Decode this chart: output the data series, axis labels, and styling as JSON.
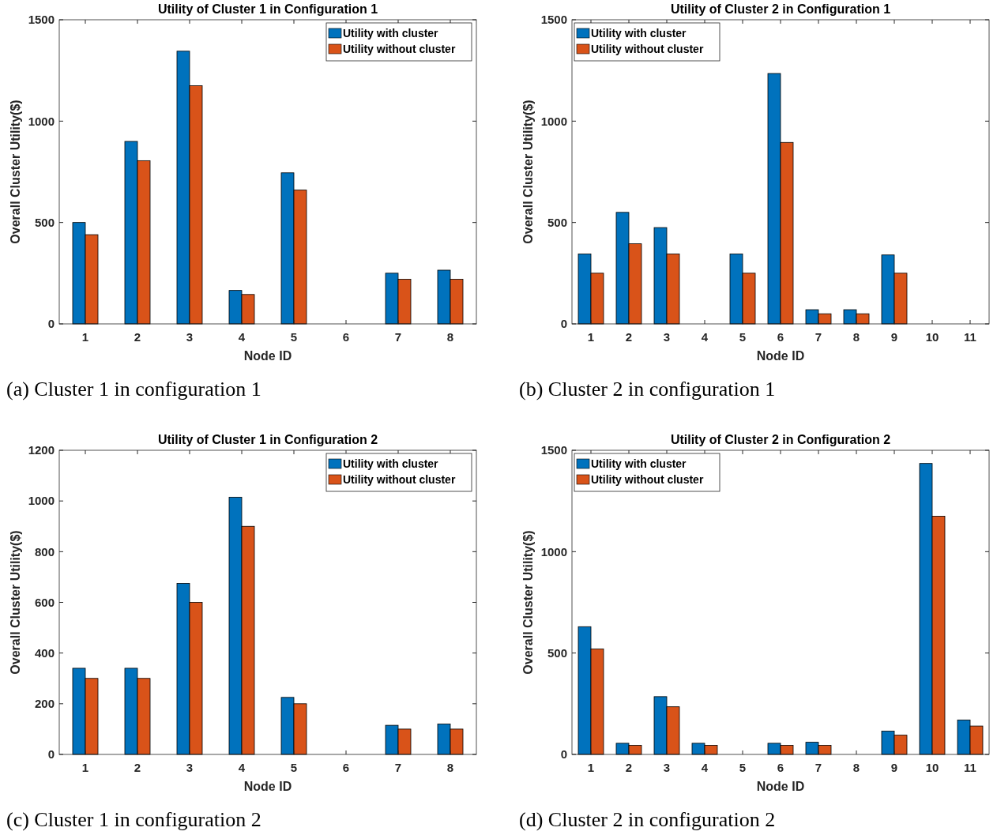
{
  "chart_data": [
    {
      "type": "bar",
      "title": "Utility of Cluster 1 in Configuration 1",
      "xlabel": "Node ID",
      "ylabel": "Overall Cluster Utility($)",
      "categories": [
        "1",
        "2",
        "3",
        "4",
        "5",
        "6",
        "7",
        "8"
      ],
      "series": [
        {
          "name": "Utility with cluster",
          "color": "#0072bd",
          "values": [
            500,
            900,
            1345,
            165,
            745,
            0,
            250,
            265
          ]
        },
        {
          "name": "Utility without cluster",
          "color": "#d95319",
          "values": [
            440,
            805,
            1175,
            145,
            660,
            0,
            220,
            220
          ]
        }
      ],
      "ylim": [
        0,
        1500
      ],
      "yticks": [
        0,
        500,
        1000,
        1500
      ],
      "grid": false,
      "legend": "top right",
      "annotations": [
        "(a) Cluster 1 in configuration 1"
      ]
    },
    {
      "type": "bar",
      "title": "Utility of Cluster 2 in Configuration 1",
      "xlabel": "Node ID",
      "ylabel": "Overall Cluster Utility($)",
      "categories": [
        "1",
        "2",
        "3",
        "4",
        "5",
        "6",
        "7",
        "8",
        "9",
        "10",
        "11"
      ],
      "series": [
        {
          "name": "Utility with cluster",
          "color": "#0072bd",
          "values": [
            345,
            550,
            475,
            0,
            345,
            1235,
            70,
            70,
            340,
            0,
            0
          ]
        },
        {
          "name": "Utility without cluster",
          "color": "#d95319",
          "values": [
            250,
            395,
            345,
            0,
            250,
            895,
            50,
            50,
            250,
            0,
            0
          ]
        }
      ],
      "ylim": [
        0,
        1500
      ],
      "yticks": [
        0,
        500,
        1000,
        1500
      ],
      "grid": false,
      "legend": "top left",
      "annotations": [
        "(b) Cluster 2 in configuration 1"
      ]
    },
    {
      "type": "bar",
      "title": "Utility of Cluster 1 in Configuration 2",
      "xlabel": "Node ID",
      "ylabel": "Overall Cluster Utility($)",
      "categories": [
        "1",
        "2",
        "3",
        "4",
        "5",
        "6",
        "7",
        "8"
      ],
      "series": [
        {
          "name": "Utility with cluster",
          "color": "#0072bd",
          "values": [
            340,
            340,
            675,
            1015,
            225,
            0,
            115,
            120
          ]
        },
        {
          "name": "Utility without cluster",
          "color": "#d95319",
          "values": [
            300,
            300,
            600,
            900,
            200,
            0,
            100,
            100
          ]
        }
      ],
      "ylim": [
        0,
        1200
      ],
      "yticks": [
        0,
        200,
        400,
        600,
        800,
        1000,
        1200
      ],
      "grid": false,
      "legend": "top right",
      "annotations": [
        "(c) Cluster 1 in configuration 2"
      ]
    },
    {
      "type": "bar",
      "title": "Utility of Cluster 2 in Configuration 2",
      "xlabel": "Node ID",
      "ylabel": "Overall Cluster Utility($)",
      "categories": [
        "1",
        "2",
        "3",
        "4",
        "5",
        "6",
        "7",
        "8",
        "9",
        "10",
        "11"
      ],
      "series": [
        {
          "name": "Utility with cluster",
          "color": "#0072bd",
          "values": [
            630,
            55,
            285,
            55,
            0,
            55,
            60,
            0,
            115,
            1435,
            170
          ]
        },
        {
          "name": "Utility without cluster",
          "color": "#d95319",
          "values": [
            520,
            45,
            235,
            45,
            0,
            45,
            45,
            0,
            95,
            1175,
            140
          ]
        }
      ],
      "ylim": [
        0,
        1500
      ],
      "yticks": [
        0,
        500,
        1000,
        1500
      ],
      "grid": false,
      "legend": "top left",
      "annotations": [
        "(d) Cluster 2 in configuration 2"
      ]
    }
  ]
}
